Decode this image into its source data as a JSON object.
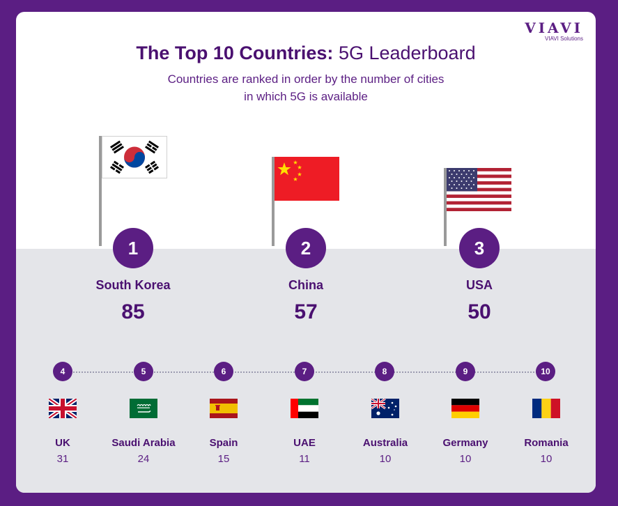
{
  "logo": {
    "word": "VIAVI",
    "subtext": "VIAVI Solutions"
  },
  "title": {
    "bold": "The Top 10 Countries:",
    "regular": "5G Leaderboard"
  },
  "subtitle": [
    "Countries are ranked in order by the number of cities",
    "in which 5G is available"
  ],
  "podium": [
    {
      "rank": "1",
      "country": "South Korea",
      "value": "85",
      "flag_icon": "south-korea-flag-icon"
    },
    {
      "rank": "2",
      "country": "China",
      "value": "57",
      "flag_icon": "china-flag-icon"
    },
    {
      "rank": "3",
      "country": "USA",
      "value": "50",
      "flag_icon": "usa-flag-icon"
    }
  ],
  "rest": [
    {
      "rank": "4",
      "country": "UK",
      "value": "31",
      "flag_icon": "uk-flag-icon"
    },
    {
      "rank": "5",
      "country": "Saudi Arabia",
      "value": "24",
      "flag_icon": "saudi-arabia-flag-icon"
    },
    {
      "rank": "6",
      "country": "Spain",
      "value": "15",
      "flag_icon": "spain-flag-icon"
    },
    {
      "rank": "7",
      "country": "UAE",
      "value": "11",
      "flag_icon": "uae-flag-icon"
    },
    {
      "rank": "8",
      "country": "Australia",
      "value": "10",
      "flag_icon": "australia-flag-icon"
    },
    {
      "rank": "9",
      "country": "Germany",
      "value": "10",
      "flag_icon": "germany-flag-icon"
    },
    {
      "rank": "10",
      "country": "Romania",
      "value": "10",
      "flag_icon": "romania-flag-icon"
    }
  ],
  "colors": {
    "background": "#5b1e83",
    "accent": "#5b1e83",
    "panel": "#e4e5e9"
  }
}
